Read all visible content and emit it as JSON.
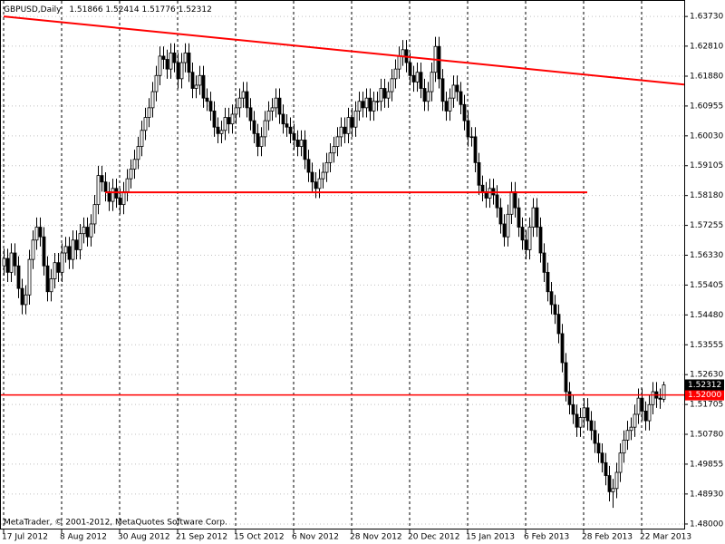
{
  "chart_data": {
    "type": "candlestick",
    "title": "GBPUSD,Daily",
    "watermark": "MetaTrader, © 2001-2012, MetaQuotes Software Corp.",
    "categories": [
      "17 Jul 2012",
      null,
      null,
      null,
      null,
      null,
      null,
      null,
      null,
      null,
      null,
      null,
      null,
      null,
      null,
      null,
      "8 Aug 2012",
      null,
      null,
      null,
      null,
      null,
      null,
      null,
      null,
      null,
      null,
      null,
      null,
      null,
      null,
      null,
      "30 Aug 2012",
      null,
      null,
      null,
      null,
      null,
      null,
      null,
      null,
      null,
      null,
      null,
      null,
      null,
      null,
      null,
      "21 Sep 2012",
      null,
      null,
      null,
      null,
      null,
      null,
      null,
      null,
      null,
      null,
      null,
      null,
      null,
      null,
      null,
      "15 Oct 2012",
      null,
      null,
      null,
      null,
      null,
      null,
      null,
      null,
      null,
      null,
      null,
      null,
      null,
      null,
      null,
      "6 Nov 2012",
      null,
      null,
      null,
      null,
      null,
      null,
      null,
      null,
      null,
      null,
      null,
      null,
      null,
      null,
      null,
      "28 Nov 2012",
      null,
      null,
      null,
      null,
      null,
      null,
      null,
      null,
      null,
      null,
      null,
      null,
      null,
      null,
      null,
      "20 Dec 2012",
      null,
      null,
      null,
      null,
      null,
      null,
      null,
      null,
      null,
      null,
      null,
      null,
      null,
      null,
      null,
      "15 Jan 2013",
      null,
      null,
      null,
      null,
      null,
      null,
      null,
      null,
      null,
      null,
      null,
      null,
      null,
      null,
      null,
      "6 Feb 2013",
      null,
      null,
      null,
      null,
      null,
      null,
      null,
      null,
      null,
      null,
      null,
      null,
      null,
      null,
      null,
      "28 Feb 2013",
      null,
      null,
      null,
      null,
      null,
      null,
      null,
      null,
      null,
      null,
      null,
      null,
      null,
      null,
      null,
      "22 Mar 2013",
      null,
      null,
      null,
      null,
      null,
      null
    ],
    "open": [
      1.56,
      1.5623,
      1.558,
      1.564,
      1.56,
      1.553,
      1.548,
      1.551,
      1.562,
      1.568,
      1.572,
      1.569,
      1.56,
      1.552,
      1.556,
      1.561,
      1.558,
      1.564,
      1.566,
      1.562,
      1.568,
      1.565,
      1.57,
      1.572,
      1.569,
      1.573,
      1.579,
      1.588,
      1.586,
      1.583,
      1.58,
      1.584,
      1.581,
      1.579,
      1.583,
      1.587,
      1.59,
      1.593,
      1.597,
      1.602,
      1.606,
      1.609,
      1.614,
      1.619,
      1.625,
      1.624,
      1.621,
      1.626,
      1.623,
      1.618,
      1.623,
      1.626,
      1.62,
      1.615,
      1.616,
      1.619,
      1.612,
      1.611,
      1.608,
      1.603,
      1.601,
      1.602,
      1.606,
      1.604,
      1.607,
      1.609,
      1.612,
      1.614,
      1.609,
      1.605,
      1.601,
      1.597,
      1.6,
      1.605,
      1.608,
      1.609,
      1.612,
      1.607,
      1.604,
      1.603,
      1.601,
      1.599,
      1.597,
      1.599,
      1.593,
      1.589,
      1.586,
      1.584,
      1.587,
      1.589,
      1.592,
      1.595,
      1.597,
      1.6,
      1.603,
      1.601,
      1.606,
      1.603,
      1.608,
      1.611,
      1.609,
      1.612,
      1.608,
      1.611,
      1.611,
      1.615,
      1.612,
      1.614,
      1.618,
      1.621,
      1.625,
      1.627,
      1.623,
      1.619,
      1.617,
      1.62,
      1.615,
      1.611,
      1.614,
      1.62,
      1.628,
      1.618,
      1.611,
      1.608,
      1.612,
      1.616,
      1.614,
      1.61,
      1.605,
      1.6,
      1.6,
      1.592,
      1.585,
      1.583,
      1.581,
      1.584,
      1.582,
      1.578,
      1.573,
      1.569,
      1.576,
      1.583,
      1.578,
      1.572,
      1.568,
      1.565,
      1.572,
      1.578,
      1.572,
      1.564,
      1.558,
      1.552,
      1.548,
      1.545,
      1.539,
      1.53,
      1.521,
      1.517,
      1.514,
      1.51,
      1.513,
      1.516,
      1.512,
      1.509,
      1.505,
      1.502,
      1.499,
      1.495,
      1.49,
      1.491,
      1.496,
      1.502,
      1.506,
      1.509,
      1.51,
      1.514,
      1.519,
      1.515,
      1.512,
      1.517,
      1.521,
      1.519,
      1.51866
    ],
    "high": [
      1.5653,
      1.5653,
      1.567,
      1.567,
      1.563,
      1.556,
      1.554,
      1.565,
      1.571,
      1.575,
      1.575,
      1.572,
      1.563,
      1.559,
      1.564,
      1.564,
      1.567,
      1.569,
      1.569,
      1.571,
      1.571,
      1.573,
      1.575,
      1.575,
      1.576,
      1.582,
      1.591,
      1.591,
      1.589,
      1.586,
      1.587,
      1.587,
      1.584,
      1.586,
      1.59,
      1.593,
      1.596,
      1.6,
      1.605,
      1.609,
      1.612,
      1.617,
      1.622,
      1.628,
      1.628,
      1.627,
      1.629,
      1.629,
      1.626,
      1.626,
      1.629,
      1.629,
      1.623,
      1.619,
      1.622,
      1.622,
      1.615,
      1.614,
      1.611,
      1.606,
      1.605,
      1.609,
      1.609,
      1.61,
      1.612,
      1.615,
      1.617,
      1.617,
      1.612,
      1.608,
      1.604,
      1.603,
      1.608,
      1.611,
      1.612,
      1.615,
      1.615,
      1.61,
      1.607,
      1.606,
      1.604,
      1.602,
      1.602,
      1.602,
      1.596,
      1.592,
      1.589,
      1.59,
      1.592,
      1.595,
      1.598,
      1.6,
      1.603,
      1.606,
      1.606,
      1.609,
      1.609,
      1.611,
      1.614,
      1.614,
      1.615,
      1.615,
      1.614,
      1.614,
      1.618,
      1.618,
      1.617,
      1.621,
      1.624,
      1.628,
      1.63,
      1.63,
      1.626,
      1.622,
      1.623,
      1.623,
      1.618,
      1.617,
      1.623,
      1.631,
      1.631,
      1.621,
      1.614,
      1.615,
      1.619,
      1.619,
      1.617,
      1.613,
      1.608,
      1.603,
      1.603,
      1.595,
      1.588,
      1.586,
      1.587,
      1.587,
      1.585,
      1.581,
      1.576,
      1.579,
      1.586,
      1.586,
      1.581,
      1.575,
      1.571,
      1.575,
      1.581,
      1.581,
      1.575,
      1.567,
      1.561,
      1.555,
      1.551,
      1.548,
      1.542,
      1.533,
      1.524,
      1.52,
      1.517,
      1.516,
      1.519,
      1.519,
      1.515,
      1.512,
      1.508,
      1.505,
      1.502,
      1.498,
      1.494,
      1.499,
      1.505,
      1.509,
      1.512,
      1.513,
      1.517,
      1.522,
      1.522,
      1.518,
      1.52,
      1.524,
      1.524,
      1.522,
      1.52414
    ],
    "low": [
      1.557,
      1.555,
      1.555,
      1.557,
      1.55,
      1.545,
      1.545,
      1.548,
      1.559,
      1.565,
      1.566,
      1.557,
      1.549,
      1.549,
      1.553,
      1.555,
      1.555,
      1.561,
      1.559,
      1.559,
      1.562,
      1.562,
      1.567,
      1.566,
      1.566,
      1.57,
      1.576,
      1.583,
      1.58,
      1.577,
      1.577,
      1.578,
      1.576,
      1.576,
      1.58,
      1.584,
      1.587,
      1.59,
      1.594,
      1.599,
      1.603,
      1.606,
      1.611,
      1.616,
      1.621,
      1.618,
      1.618,
      1.62,
      1.615,
      1.615,
      1.62,
      1.617,
      1.612,
      1.612,
      1.613,
      1.609,
      1.608,
      1.605,
      1.6,
      1.598,
      1.598,
      1.599,
      1.601,
      1.601,
      1.604,
      1.606,
      1.609,
      1.606,
      1.602,
      1.598,
      1.594,
      1.594,
      1.597,
      1.602,
      1.605,
      1.606,
      1.604,
      1.601,
      1.6,
      1.598,
      1.596,
      1.594,
      1.594,
      1.59,
      1.586,
      1.583,
      1.581,
      1.581,
      1.584,
      1.586,
      1.589,
      1.592,
      1.594,
      1.597,
      1.598,
      1.598,
      1.6,
      1.6,
      1.605,
      1.606,
      1.606,
      1.605,
      1.605,
      1.608,
      1.608,
      1.609,
      1.609,
      1.611,
      1.615,
      1.618,
      1.622,
      1.62,
      1.616,
      1.614,
      1.614,
      1.612,
      1.608,
      1.608,
      1.611,
      1.617,
      1.615,
      1.608,
      1.605,
      1.605,
      1.609,
      1.611,
      1.607,
      1.602,
      1.597,
      1.597,
      1.589,
      1.582,
      1.58,
      1.578,
      1.578,
      1.579,
      1.575,
      1.57,
      1.566,
      1.566,
      1.573,
      1.575,
      1.569,
      1.565,
      1.562,
      1.562,
      1.569,
      1.569,
      1.561,
      1.555,
      1.549,
      1.545,
      1.542,
      1.536,
      1.527,
      1.518,
      1.514,
      1.511,
      1.507,
      1.507,
      1.51,
      1.509,
      1.506,
      1.502,
      1.499,
      1.496,
      1.492,
      1.487,
      1.485,
      1.488,
      1.493,
      1.499,
      1.503,
      1.506,
      1.507,
      1.511,
      1.512,
      1.509,
      1.509,
      1.514,
      1.516,
      1.5157,
      1.51776
    ],
    "close": [
      1.5623,
      1.558,
      1.564,
      1.56,
      1.553,
      1.548,
      1.551,
      1.562,
      1.568,
      1.572,
      1.569,
      1.56,
      1.552,
      1.556,
      1.561,
      1.558,
      1.564,
      1.566,
      1.562,
      1.568,
      1.565,
      1.57,
      1.572,
      1.569,
      1.573,
      1.579,
      1.588,
      1.586,
      1.583,
      1.58,
      1.584,
      1.581,
      1.579,
      1.583,
      1.587,
      1.59,
      1.593,
      1.597,
      1.602,
      1.606,
      1.609,
      1.614,
      1.619,
      1.625,
      1.624,
      1.621,
      1.626,
      1.623,
      1.618,
      1.623,
      1.626,
      1.62,
      1.615,
      1.616,
      1.619,
      1.612,
      1.611,
      1.608,
      1.603,
      1.601,
      1.602,
      1.606,
      1.604,
      1.607,
      1.609,
      1.612,
      1.614,
      1.609,
      1.605,
      1.601,
      1.597,
      1.6,
      1.605,
      1.608,
      1.609,
      1.612,
      1.607,
      1.604,
      1.603,
      1.601,
      1.599,
      1.597,
      1.599,
      1.593,
      1.589,
      1.586,
      1.584,
      1.587,
      1.589,
      1.592,
      1.595,
      1.597,
      1.6,
      1.603,
      1.601,
      1.606,
      1.603,
      1.608,
      1.611,
      1.609,
      1.612,
      1.608,
      1.611,
      1.611,
      1.615,
      1.612,
      1.614,
      1.618,
      1.621,
      1.625,
      1.627,
      1.623,
      1.619,
      1.617,
      1.62,
      1.615,
      1.611,
      1.614,
      1.62,
      1.628,
      1.618,
      1.611,
      1.608,
      1.612,
      1.616,
      1.614,
      1.61,
      1.605,
      1.6,
      1.6,
      1.592,
      1.585,
      1.583,
      1.581,
      1.584,
      1.582,
      1.578,
      1.573,
      1.569,
      1.576,
      1.583,
      1.578,
      1.572,
      1.568,
      1.565,
      1.572,
      1.578,
      1.572,
      1.564,
      1.558,
      1.552,
      1.548,
      1.545,
      1.539,
      1.53,
      1.521,
      1.517,
      1.514,
      1.51,
      1.513,
      1.516,
      1.512,
      1.509,
      1.505,
      1.502,
      1.499,
      1.495,
      1.49,
      1.491,
      1.496,
      1.502,
      1.506,
      1.509,
      1.51,
      1.514,
      1.519,
      1.515,
      1.512,
      1.517,
      1.521,
      1.519,
      1.51866,
      1.52312
    ],
    "ylim": [
      1.4783,
      1.6424
    ],
    "yticks": [
      {
        "value": 1.6373,
        "label": "1.63730"
      },
      {
        "value": 1.6281,
        "label": "1.62810"
      },
      {
        "value": 1.6188,
        "label": "1.61880"
      },
      {
        "value": 1.60955,
        "label": "1.60955"
      },
      {
        "value": 1.6003,
        "label": "1.60030"
      },
      {
        "value": 1.59105,
        "label": "1.59105"
      },
      {
        "value": 1.5818,
        "label": "1.58180"
      },
      {
        "value": 1.57255,
        "label": "1.57255"
      },
      {
        "value": 1.5633,
        "label": "1.56330"
      },
      {
        "value": 1.55405,
        "label": "1.55405"
      },
      {
        "value": 1.5448,
        "label": "1.54480"
      },
      {
        "value": 1.53555,
        "label": "1.53555"
      },
      {
        "value": 1.5263,
        "label": "1.52630"
      },
      {
        "value": 1.51705,
        "label": "1.51705"
      },
      {
        "value": 1.5078,
        "label": "1.50780"
      },
      {
        "value": 1.49855,
        "label": "1.49855"
      },
      {
        "value": 1.4893,
        "label": "1.48930"
      },
      {
        "value": 1.48,
        "label": "1.48000"
      }
    ],
    "grid": true,
    "color": "#000000",
    "line_color": "#ff0000",
    "horizontal_lines": [
      {
        "value": 1.52,
        "label": "1.52000"
      }
    ],
    "trend_lines": [
      {
        "x": [
          0,
          188
        ],
        "y": [
          1.6373,
          1.6162
        ]
      },
      {
        "x": [
          28,
          161
        ],
        "y": [
          1.5828,
          1.5828
        ]
      }
    ]
  }
}
